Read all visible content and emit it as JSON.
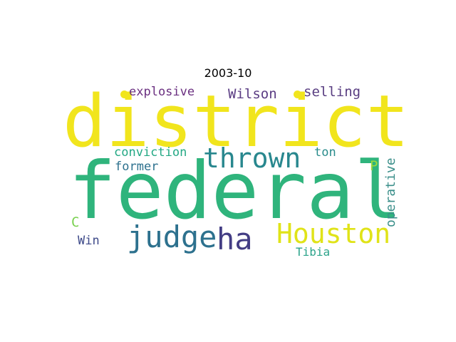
{
  "title": "2003-10",
  "words": [
    {
      "text": "district",
      "color": "#f1e51d"
    },
    {
      "text": "federal",
      "color": "#2fb47c"
    },
    {
      "text": "thrown",
      "color": "#28878e"
    },
    {
      "text": "Houston",
      "color": "#e0e318"
    },
    {
      "text": "judge",
      "color": "#2d718e"
    },
    {
      "text": "ha",
      "color": "#433d84"
    },
    {
      "text": "explosive",
      "color": "#6a2f80"
    },
    {
      "text": "Wilson",
      "color": "#5a3c83"
    },
    {
      "text": "selling",
      "color": "#583d81"
    },
    {
      "text": "conviction",
      "color": "#23a884"
    },
    {
      "text": "ton",
      "color": "#2a8c8c"
    },
    {
      "text": "former",
      "color": "#2d718e"
    },
    {
      "text": "P",
      "color": "#9fda3a"
    },
    {
      "text": "operative",
      "color": "#3b8f8a"
    },
    {
      "text": "C",
      "color": "#7ad151"
    },
    {
      "text": "Win",
      "color": "#3e4a89"
    },
    {
      "text": "Tibia",
      "color": "#2ba38a"
    }
  ],
  "dot_color": "#f1e51d"
}
